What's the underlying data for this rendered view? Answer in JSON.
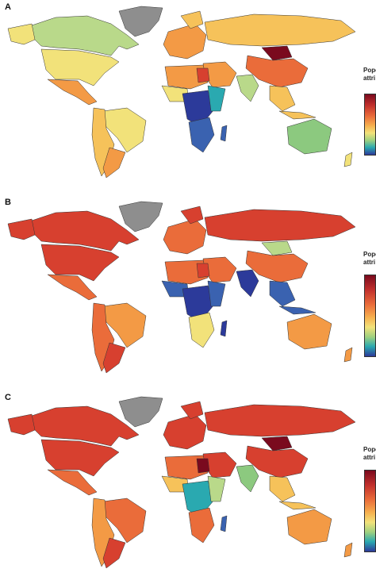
{
  "panels": [
    {
      "label": "A",
      "legend_title": [
        "Popo",
        "attri"
      ]
    },
    {
      "label": "B",
      "legend_title": [
        "Popo",
        "attri"
      ]
    },
    {
      "label": "C",
      "legend_title": [
        "Popo",
        "attri"
      ]
    }
  ],
  "colors": {
    "greenland": "#8e8e8e",
    "dark_red": "#7a0a1e",
    "red": "#d7402f",
    "orange_red": "#ea6c3a",
    "orange": "#f39a45",
    "light_orange": "#f6c25a",
    "yellow": "#f2e27a",
    "light_green": "#b9d98a",
    "green": "#8cc97f",
    "teal": "#2aa9b0",
    "blue": "#3a62b0",
    "dark_blue": "#2c3a9a"
  }
}
